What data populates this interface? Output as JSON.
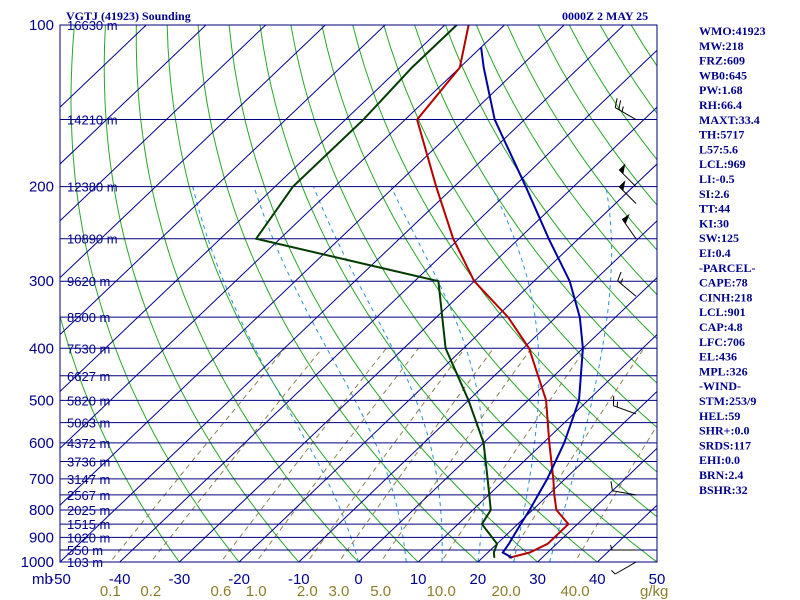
{
  "header": {
    "title": "VGTJ (41923) Sounding",
    "time": "0000Z  2 MAY 25",
    "pressure_unit": "mb",
    "mixing_ratio_unit": "g/kg"
  },
  "indices": [
    "WMO:41923",
    "MW:218",
    "FRZ:609",
    "WB0:645",
    "PW:1.68",
    "RH:66.4",
    "MAXT:33.4",
    "TH:5717",
    "L57:5.6",
    "LCL:969",
    "LI:-0.5",
    "SI:2.6",
    "TT:44",
    "KI:30",
    "SW:125",
    "EI:0.4",
    "-PARCEL-",
    "CAPE:78",
    "CINH:218",
    "LCL:901",
    "CAP:4.8",
    "LFC:706",
    "EL:436",
    "MPL:326",
    "-WIND-",
    "STM:253/9",
    "HEL:59",
    "SHR+:0.0",
    "SRDS:117",
    "EHI:0.0",
    "BRN:2.4",
    "BSHR:32"
  ],
  "chart_data": {
    "type": "line",
    "subtype": "skew-T log-P",
    "title": "VGTJ (41923) Sounding",
    "xlabel": "",
    "ylabel": "mb",
    "ylim": [
      1000,
      100
    ],
    "xlim": [
      -50,
      50
    ],
    "pressure_levels": [
      {
        "p": 100,
        "label": "100",
        "height": "16630 m"
      },
      {
        "p": 150,
        "label": "",
        "height": "14210 m"
      },
      {
        "p": 200,
        "label": "200",
        "height": "12380 m"
      },
      {
        "p": 250,
        "label": "",
        "height": "10890 m"
      },
      {
        "p": 300,
        "label": "300",
        "height": "9620 m"
      },
      {
        "p": 350,
        "label": "",
        "height": "8500 m"
      },
      {
        "p": 400,
        "label": "400",
        "height": "7530 m"
      },
      {
        "p": 450,
        "label": "",
        "height": "6627 m"
      },
      {
        "p": 500,
        "label": "500",
        "height": "5820 m"
      },
      {
        "p": 550,
        "label": "",
        "height": "5063 m"
      },
      {
        "p": 600,
        "label": "600",
        "height": "4372 m"
      },
      {
        "p": 650,
        "label": "",
        "height": "3736 m"
      },
      {
        "p": 700,
        "label": "700",
        "height": "3147 m"
      },
      {
        "p": 750,
        "label": "",
        "height": "2567 m"
      },
      {
        "p": 800,
        "label": "800",
        "height": "2025 m"
      },
      {
        "p": 850,
        "label": "",
        "height": "1515 m"
      },
      {
        "p": 900,
        "label": "900",
        "height": "1020 m"
      },
      {
        "p": 950,
        "label": "",
        "height": "550 m"
      },
      {
        "p": 1000,
        "label": "1000",
        "height": "103 m"
      }
    ],
    "temperature_ticks": [
      "-50",
      "-40",
      "-30",
      "-20",
      "-10",
      "0",
      "10",
      "20",
      "30",
      "40",
      "50"
    ],
    "mixing_ratio_ticks": [
      {
        "label": "0.1",
        "w": 0.1
      },
      {
        "label": "0.2",
        "w": 0.2
      },
      {
        "label": "0.6",
        "w": 0.6
      },
      {
        "label": "1.0",
        "w": 1.0
      },
      {
        "label": "2.0",
        "w": 2.0
      },
      {
        "label": "3.0",
        "w": 3.0
      },
      {
        "label": "5.0",
        "w": 5.0
      },
      {
        "label": "10.0",
        "w": 10.0
      },
      {
        "label": "20.0",
        "w": 20.0
      },
      {
        "label": "40.0",
        "w": 40.0
      }
    ],
    "series": [
      {
        "name": "Temperature",
        "color": "#b40000",
        "points": [
          [
            982,
            24.5
          ],
          [
            960,
            27
          ],
          [
            925,
            28.5
          ],
          [
            850,
            28.5
          ],
          [
            800,
            24
          ],
          [
            750,
            21
          ],
          [
            700,
            18
          ],
          [
            600,
            11
          ],
          [
            500,
            3
          ],
          [
            400,
            -9
          ],
          [
            350,
            -18
          ],
          [
            300,
            -30
          ],
          [
            250,
            -41
          ],
          [
            200,
            -53
          ],
          [
            150,
            -68
          ],
          [
            120,
            -70
          ],
          [
            100,
            -76
          ]
        ]
      },
      {
        "name": "Dewpoint",
        "color": "#003c00",
        "points": [
          [
            982,
            22
          ],
          [
            960,
            21
          ],
          [
            925,
            20
          ],
          [
            850,
            14
          ],
          [
            800,
            13
          ],
          [
            700,
            7
          ],
          [
            600,
            0
          ],
          [
            500,
            -10
          ],
          [
            400,
            -23
          ],
          [
            300,
            -36
          ],
          [
            250,
            -74
          ],
          [
            200,
            -77
          ],
          [
            150,
            -77
          ],
          [
            120,
            -78
          ],
          [
            100,
            -78
          ]
        ]
      },
      {
        "name": "Parcel",
        "color": "#0000a0",
        "points": [
          [
            982,
            25
          ],
          [
            960,
            22.5
          ],
          [
            925,
            22
          ],
          [
            900,
            21.5
          ],
          [
            850,
            20.5
          ],
          [
            800,
            19.5
          ],
          [
            700,
            17
          ],
          [
            600,
            13.5
          ],
          [
            500,
            8.5
          ],
          [
            400,
            0
          ],
          [
            350,
            -6
          ],
          [
            300,
            -14
          ],
          [
            250,
            -25
          ],
          [
            200,
            -38
          ],
          [
            150,
            -55
          ],
          [
            120,
            -66
          ],
          [
            110,
            -70
          ]
        ]
      }
    ],
    "wind_barbs": [
      {
        "p": 150,
        "dir": 300,
        "spd": 25
      },
      {
        "p": 200,
        "dir": 315,
        "spd": 50
      },
      {
        "p": 215,
        "dir": 315,
        "spd": 50
      },
      {
        "p": 250,
        "dir": 325,
        "spd": 50
      },
      {
        "p": 320,
        "dir": 310,
        "spd": 15
      },
      {
        "p": 530,
        "dir": 290,
        "spd": 15
      },
      {
        "p": 750,
        "dir": 280,
        "spd": 10
      },
      {
        "p": 950,
        "dir": 270,
        "spd": 5
      },
      {
        "p": 1000,
        "dir": 240,
        "spd": 5
      }
    ],
    "grid": true,
    "colors": {
      "isobar": "#00007f",
      "isotherm": "#00008b",
      "dry_adiabat": "#2aa52a",
      "moist_adiabat": "#2a8fd6",
      "mixing_ratio": "#8c8050",
      "axis_text": "#00008b",
      "mixing_text": "#8b7d2a"
    }
  }
}
